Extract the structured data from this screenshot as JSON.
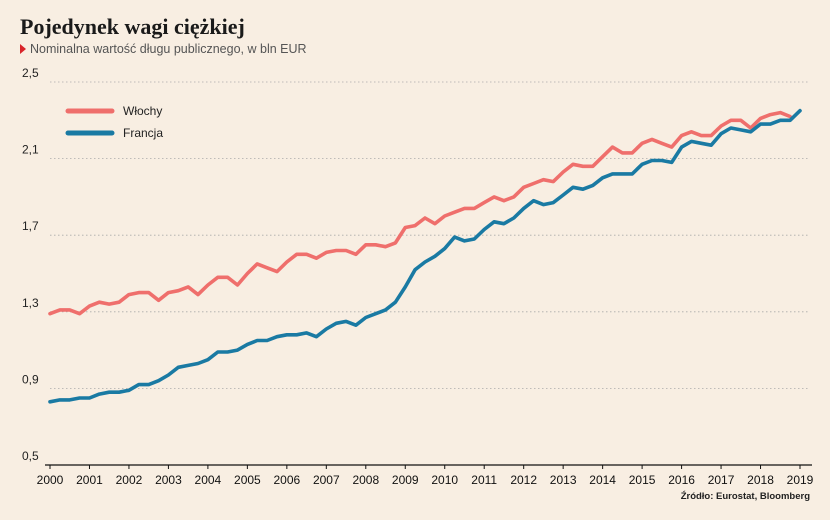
{
  "title": "Pojedynek wagi ciężkiej",
  "subtitle": "Nominalna wartość długu publicznego, w bln EUR",
  "source": "Źródło: Eurostat, Bloomberg",
  "colors": {
    "Włochy": "#ef6f6c",
    "Francja": "#1a7aa3",
    "background": "#f8eee2",
    "accent": "#d9252a"
  },
  "chart_data": {
    "type": "line",
    "title": "Pojedynek wagi ciężkiej",
    "subtitle": "Nominalna wartość długu publicznego, w bln EUR",
    "xlabel": "",
    "ylabel": "",
    "xlim": [
      2000,
      2019
    ],
    "ylim": [
      0.5,
      2.5
    ],
    "yticks": [
      "0,5",
      "0,9",
      "1,3",
      "1,7",
      "2,1",
      "2,5"
    ],
    "ytick_values": [
      0.5,
      0.9,
      1.3,
      1.7,
      2.1,
      2.5
    ],
    "xticks": [
      "2000",
      "2001",
      "2002",
      "2003",
      "2004",
      "2005",
      "2006",
      "2007",
      "2008",
      "2009",
      "2010",
      "2011",
      "2012",
      "2013",
      "2014",
      "2015",
      "2016",
      "2017",
      "2018",
      "2019"
    ],
    "grid": true,
    "legend_position": "top-left",
    "series": [
      {
        "name": "Włochy",
        "color": "#ef6f6c",
        "points": [
          [
            2000.0,
            1.29
          ],
          [
            2000.25,
            1.31
          ],
          [
            2000.5,
            1.31
          ],
          [
            2000.75,
            1.29
          ],
          [
            2001.0,
            1.33
          ],
          [
            2001.25,
            1.35
          ],
          [
            2001.5,
            1.34
          ],
          [
            2001.75,
            1.35
          ],
          [
            2002.0,
            1.39
          ],
          [
            2002.25,
            1.4
          ],
          [
            2002.5,
            1.4
          ],
          [
            2002.75,
            1.36
          ],
          [
            2003.0,
            1.4
          ],
          [
            2003.25,
            1.41
          ],
          [
            2003.5,
            1.43
          ],
          [
            2003.75,
            1.39
          ],
          [
            2004.0,
            1.44
          ],
          [
            2004.25,
            1.48
          ],
          [
            2004.5,
            1.48
          ],
          [
            2004.75,
            1.44
          ],
          [
            2005.0,
            1.5
          ],
          [
            2005.25,
            1.55
          ],
          [
            2005.5,
            1.53
          ],
          [
            2005.75,
            1.51
          ],
          [
            2006.0,
            1.56
          ],
          [
            2006.25,
            1.6
          ],
          [
            2006.5,
            1.6
          ],
          [
            2006.75,
            1.58
          ],
          [
            2007.0,
            1.61
          ],
          [
            2007.25,
            1.62
          ],
          [
            2007.5,
            1.62
          ],
          [
            2007.75,
            1.6
          ],
          [
            2008.0,
            1.65
          ],
          [
            2008.25,
            1.65
          ],
          [
            2008.5,
            1.64
          ],
          [
            2008.75,
            1.66
          ],
          [
            2009.0,
            1.74
          ],
          [
            2009.25,
            1.75
          ],
          [
            2009.5,
            1.79
          ],
          [
            2009.75,
            1.76
          ],
          [
            2010.0,
            1.8
          ],
          [
            2010.25,
            1.82
          ],
          [
            2010.5,
            1.84
          ],
          [
            2010.75,
            1.84
          ],
          [
            2011.0,
            1.87
          ],
          [
            2011.25,
            1.9
          ],
          [
            2011.5,
            1.88
          ],
          [
            2011.75,
            1.9
          ],
          [
            2012.0,
            1.95
          ],
          [
            2012.25,
            1.97
          ],
          [
            2012.5,
            1.99
          ],
          [
            2012.75,
            1.98
          ],
          [
            2013.0,
            2.03
          ],
          [
            2013.25,
            2.07
          ],
          [
            2013.5,
            2.06
          ],
          [
            2013.75,
            2.06
          ],
          [
            2014.0,
            2.11
          ],
          [
            2014.25,
            2.16
          ],
          [
            2014.5,
            2.13
          ],
          [
            2014.75,
            2.13
          ],
          [
            2015.0,
            2.18
          ],
          [
            2015.25,
            2.2
          ],
          [
            2015.5,
            2.18
          ],
          [
            2015.75,
            2.16
          ],
          [
            2016.0,
            2.22
          ],
          [
            2016.25,
            2.24
          ],
          [
            2016.5,
            2.22
          ],
          [
            2016.75,
            2.22
          ],
          [
            2017.0,
            2.27
          ],
          [
            2017.25,
            2.3
          ],
          [
            2017.5,
            2.3
          ],
          [
            2017.75,
            2.26
          ],
          [
            2018.0,
            2.31
          ],
          [
            2018.25,
            2.33
          ],
          [
            2018.5,
            2.34
          ],
          [
            2018.75,
            2.32
          ]
        ]
      },
      {
        "name": "Francja",
        "color": "#1a7aa3",
        "points": [
          [
            2000.0,
            0.83
          ],
          [
            2000.25,
            0.84
          ],
          [
            2000.5,
            0.84
          ],
          [
            2000.75,
            0.85
          ],
          [
            2001.0,
            0.85
          ],
          [
            2001.25,
            0.87
          ],
          [
            2001.5,
            0.88
          ],
          [
            2001.75,
            0.88
          ],
          [
            2002.0,
            0.89
          ],
          [
            2002.25,
            0.92
          ],
          [
            2002.5,
            0.92
          ],
          [
            2002.75,
            0.94
          ],
          [
            2003.0,
            0.97
          ],
          [
            2003.25,
            1.01
          ],
          [
            2003.5,
            1.02
          ],
          [
            2003.75,
            1.03
          ],
          [
            2004.0,
            1.05
          ],
          [
            2004.25,
            1.09
          ],
          [
            2004.5,
            1.09
          ],
          [
            2004.75,
            1.1
          ],
          [
            2005.0,
            1.13
          ],
          [
            2005.25,
            1.15
          ],
          [
            2005.5,
            1.15
          ],
          [
            2005.75,
            1.17
          ],
          [
            2006.0,
            1.18
          ],
          [
            2006.25,
            1.18
          ],
          [
            2006.5,
            1.19
          ],
          [
            2006.75,
            1.17
          ],
          [
            2007.0,
            1.21
          ],
          [
            2007.25,
            1.24
          ],
          [
            2007.5,
            1.25
          ],
          [
            2007.75,
            1.23
          ],
          [
            2008.0,
            1.27
          ],
          [
            2008.25,
            1.29
          ],
          [
            2008.5,
            1.31
          ],
          [
            2008.75,
            1.35
          ],
          [
            2009.0,
            1.43
          ],
          [
            2009.25,
            1.52
          ],
          [
            2009.5,
            1.56
          ],
          [
            2009.75,
            1.59
          ],
          [
            2010.0,
            1.63
          ],
          [
            2010.25,
            1.69
          ],
          [
            2010.5,
            1.67
          ],
          [
            2010.75,
            1.68
          ],
          [
            2011.0,
            1.73
          ],
          [
            2011.25,
            1.77
          ],
          [
            2011.5,
            1.76
          ],
          [
            2011.75,
            1.79
          ],
          [
            2012.0,
            1.84
          ],
          [
            2012.25,
            1.88
          ],
          [
            2012.5,
            1.86
          ],
          [
            2012.75,
            1.87
          ],
          [
            2013.0,
            1.91
          ],
          [
            2013.25,
            1.95
          ],
          [
            2013.5,
            1.94
          ],
          [
            2013.75,
            1.96
          ],
          [
            2014.0,
            2.0
          ],
          [
            2014.25,
            2.02
          ],
          [
            2014.5,
            2.02
          ],
          [
            2014.75,
            2.02
          ],
          [
            2015.0,
            2.07
          ],
          [
            2015.25,
            2.09
          ],
          [
            2015.5,
            2.09
          ],
          [
            2015.75,
            2.08
          ],
          [
            2016.0,
            2.16
          ],
          [
            2016.25,
            2.19
          ],
          [
            2016.5,
            2.18
          ],
          [
            2016.75,
            2.17
          ],
          [
            2017.0,
            2.23
          ],
          [
            2017.25,
            2.26
          ],
          [
            2017.5,
            2.25
          ],
          [
            2017.75,
            2.24
          ],
          [
            2018.0,
            2.28
          ],
          [
            2018.25,
            2.28
          ],
          [
            2018.5,
            2.3
          ],
          [
            2018.75,
            2.3
          ],
          [
            2019.0,
            2.35
          ]
        ]
      }
    ]
  }
}
